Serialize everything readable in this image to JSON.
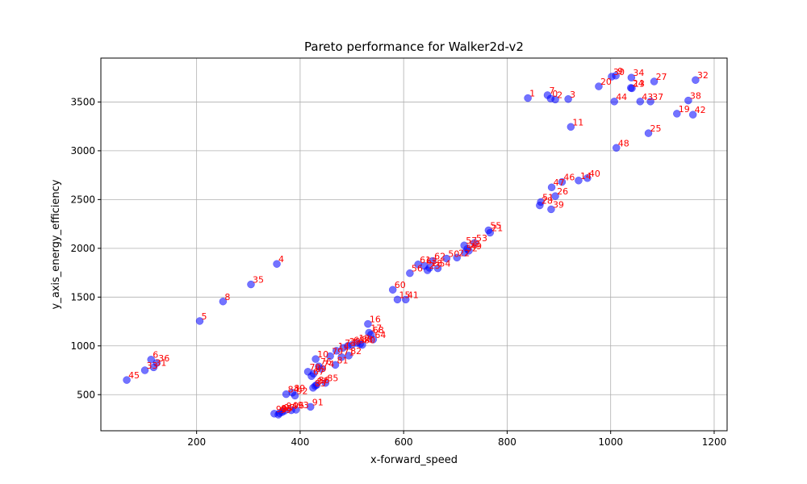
{
  "chart_data": {
    "type": "scatter",
    "title": "Pareto performance for Walker2d-v2",
    "xlabel": "x-forward_speed",
    "ylabel": "y_axis_energy_efficiency",
    "xlim": [
      15,
      1225
    ],
    "ylim": [
      130,
      3950
    ],
    "xticks": [
      200,
      400,
      600,
      800,
      1000,
      1200
    ],
    "yticks": [
      500,
      1000,
      1500,
      2000,
      2500,
      3000,
      3500
    ],
    "grid": true,
    "colors": {
      "point": "#0000ff",
      "label": "#ff0000"
    },
    "points": [
      {
        "label": "1",
        "x": 840,
        "y": 3540
      },
      {
        "label": "7",
        "x": 878,
        "y": 3570
      },
      {
        "label": "0",
        "x": 884,
        "y": 3535
      },
      {
        "label": "2",
        "x": 893,
        "y": 3525
      },
      {
        "label": "3",
        "x": 918,
        "y": 3530
      },
      {
        "label": "20",
        "x": 977,
        "y": 3660
      },
      {
        "label": "30",
        "x": 1002,
        "y": 3760
      },
      {
        "label": "9",
        "x": 1010,
        "y": 3770
      },
      {
        "label": "34",
        "x": 1040,
        "y": 3750
      },
      {
        "label": "24",
        "x": 1039,
        "y": 3645
      },
      {
        "label": "13",
        "x": 1041,
        "y": 3640
      },
      {
        "label": "27",
        "x": 1084,
        "y": 3710
      },
      {
        "label": "32",
        "x": 1164,
        "y": 3725
      },
      {
        "label": "44",
        "x": 1007,
        "y": 3505
      },
      {
        "label": "43",
        "x": 1057,
        "y": 3505
      },
      {
        "label": "37",
        "x": 1077,
        "y": 3505
      },
      {
        "label": "38",
        "x": 1150,
        "y": 3515
      },
      {
        "label": "19",
        "x": 1128,
        "y": 3380
      },
      {
        "label": "42",
        "x": 1159,
        "y": 3370
      },
      {
        "label": "11",
        "x": 923,
        "y": 3245
      },
      {
        "label": "25",
        "x": 1073,
        "y": 3180
      },
      {
        "label": "48",
        "x": 1011,
        "y": 3030
      },
      {
        "label": "40",
        "x": 955,
        "y": 2720
      },
      {
        "label": "14",
        "x": 938,
        "y": 2695
      },
      {
        "label": "46",
        "x": 906,
        "y": 2680
      },
      {
        "label": "47",
        "x": 886,
        "y": 2625
      },
      {
        "label": "26",
        "x": 893,
        "y": 2535
      },
      {
        "label": "51",
        "x": 865,
        "y": 2475
      },
      {
        "label": "28",
        "x": 863,
        "y": 2440
      },
      {
        "label": "39",
        "x": 885,
        "y": 2400
      },
      {
        "label": "55",
        "x": 764,
        "y": 2185
      },
      {
        "label": "21",
        "x": 767,
        "y": 2160
      },
      {
        "label": "53",
        "x": 737,
        "y": 2055
      },
      {
        "label": "57",
        "x": 717,
        "y": 2030
      },
      {
        "label": "58",
        "x": 723,
        "y": 1995
      },
      {
        "label": "49",
        "x": 726,
        "y": 1975
      },
      {
        "label": "52",
        "x": 718,
        "y": 1955
      },
      {
        "label": "22",
        "x": 703,
        "y": 1905
      },
      {
        "label": "50",
        "x": 683,
        "y": 1895
      },
      {
        "label": "62",
        "x": 656,
        "y": 1870
      },
      {
        "label": "61",
        "x": 628,
        "y": 1835
      },
      {
        "label": "63",
        "x": 640,
        "y": 1820
      },
      {
        "label": "18",
        "x": 650,
        "y": 1800
      },
      {
        "label": "54",
        "x": 666,
        "y": 1795
      },
      {
        "label": "23",
        "x": 646,
        "y": 1775
      },
      {
        "label": "56",
        "x": 612,
        "y": 1745
      },
      {
        "label": "60",
        "x": 579,
        "y": 1575
      },
      {
        "label": "15",
        "x": 588,
        "y": 1475
      },
      {
        "label": "41",
        "x": 604,
        "y": 1475
      },
      {
        "label": "4",
        "x": 355,
        "y": 1840
      },
      {
        "label": "35",
        "x": 305,
        "y": 1630
      },
      {
        "label": "8",
        "x": 251,
        "y": 1455
      },
      {
        "label": "5",
        "x": 206,
        "y": 1255
      },
      {
        "label": "6",
        "x": 112,
        "y": 860
      },
      {
        "label": "36",
        "x": 123,
        "y": 825
      },
      {
        "label": "31",
        "x": 117,
        "y": 780
      },
      {
        "label": "33",
        "x": 100,
        "y": 750
      },
      {
        "label": "45",
        "x": 65,
        "y": 650
      },
      {
        "label": "16",
        "x": 531,
        "y": 1225
      },
      {
        "label": "17",
        "x": 533,
        "y": 1135
      },
      {
        "label": "68",
        "x": 537,
        "y": 1115
      },
      {
        "label": "64",
        "x": 541,
        "y": 1065
      },
      {
        "label": "12",
        "x": 510,
        "y": 1030
      },
      {
        "label": "88",
        "x": 516,
        "y": 1020
      },
      {
        "label": "80",
        "x": 520,
        "y": 1010
      },
      {
        "label": "65",
        "x": 500,
        "y": 1010
      },
      {
        "label": "29",
        "x": 492,
        "y": 1000
      },
      {
        "label": "73",
        "x": 483,
        "y": 980
      },
      {
        "label": "14b",
        "x": 470,
        "y": 950
      },
      {
        "label": "82",
        "x": 494,
        "y": 900
      },
      {
        "label": "79",
        "x": 458,
        "y": 895
      },
      {
        "label": "71",
        "x": 480,
        "y": 885
      },
      {
        "label": "10",
        "x": 430,
        "y": 865
      },
      {
        "label": "81",
        "x": 468,
        "y": 805
      },
      {
        "label": "76",
        "x": 436,
        "y": 790
      },
      {
        "label": "74",
        "x": 441,
        "y": 765
      },
      {
        "label": "70",
        "x": 415,
        "y": 735
      },
      {
        "label": "69",
        "x": 426,
        "y": 715
      },
      {
        "label": "67",
        "x": 422,
        "y": 690
      },
      {
        "label": "85",
        "x": 449,
        "y": 620
      },
      {
        "label": "86",
        "x": 432,
        "y": 600
      },
      {
        "label": "87",
        "x": 429,
        "y": 590
      },
      {
        "label": "83",
        "x": 425,
        "y": 570
      },
      {
        "label": "89",
        "x": 385,
        "y": 520
      },
      {
        "label": "84",
        "x": 373,
        "y": 505
      },
      {
        "label": "92",
        "x": 390,
        "y": 490
      },
      {
        "label": "91",
        "x": 420,
        "y": 375
      },
      {
        "label": "93",
        "x": 392,
        "y": 345
      },
      {
        "label": "96",
        "x": 383,
        "y": 340
      },
      {
        "label": "94",
        "x": 370,
        "y": 335
      },
      {
        "label": "97",
        "x": 365,
        "y": 320
      },
      {
        "label": "95",
        "x": 360,
        "y": 310
      },
      {
        "label": "98",
        "x": 350,
        "y": 305
      },
      {
        "label": "99",
        "x": 358,
        "y": 295
      }
    ]
  }
}
